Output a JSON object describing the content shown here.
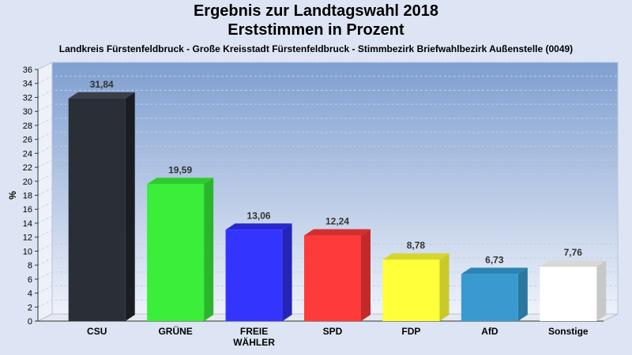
{
  "chart_data": {
    "type": "bar",
    "title": "Ergebnis zur Landtagswahl 2018",
    "title2": "Erststimmen in Prozent",
    "subtitle": "Landkreis Fürstenfeldbruck - Große Kreisstadt Fürstenfeldbruck - Stimmbezirk Briefwahlbezirk Außenstelle (0049)",
    "ylabel": "%",
    "xlabel": "",
    "ylim": [
      0,
      36
    ],
    "ytick_step": 2,
    "grid": true,
    "categories": [
      "CSU",
      "GRÜNE",
      "FREIE WÄHLER",
      "SPD",
      "FDP",
      "AfD",
      "Sonstige"
    ],
    "category_lines": [
      [
        "CSU"
      ],
      [
        "GRÜNE"
      ],
      [
        "FREIE",
        "WÄHLER"
      ],
      [
        "SPD"
      ],
      [
        "FDP"
      ],
      [
        "AfD"
      ],
      [
        "Sonstige"
      ]
    ],
    "values": [
      31.84,
      19.59,
      13.06,
      12.24,
      8.78,
      6.73,
      7.76
    ],
    "value_labels": [
      "31,84",
      "19,59",
      "13,06",
      "12,24",
      "8,78",
      "6,73",
      "7,76"
    ],
    "colors": [
      "#2a2e36",
      "#3aee3a",
      "#3434ff",
      "#ff3a3a",
      "#ffff3a",
      "#3a9ad0",
      "#ffffff"
    ],
    "side_colors": [
      "#1a1d22",
      "#2bb52b",
      "#2424b8",
      "#c22a2a",
      "#c9c92a",
      "#2a779f",
      "#c8c8c8"
    ],
    "top_colors": [
      "#3a3f48",
      "#2dcc2d",
      "#2828d0",
      "#d42f2f",
      "#d6d62a",
      "#2c84b4",
      "#d8d8d8"
    ]
  }
}
